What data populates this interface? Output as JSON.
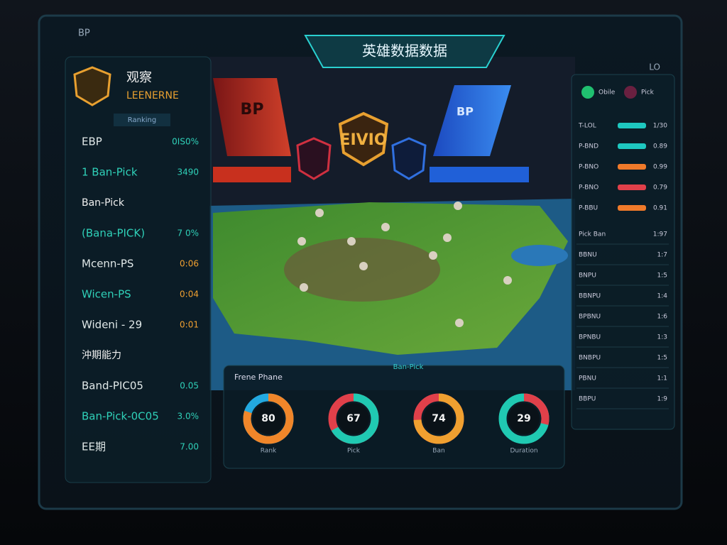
{
  "header": {
    "title": "英雄数据数据",
    "top_left": "BP",
    "top_right": "LO"
  },
  "left_panel": {
    "logo_title": "观察",
    "logo_subtitle": "LEENERNE",
    "tag": "Ranking",
    "rows": [
      {
        "label": "EBP",
        "value": "0IS0%"
      },
      {
        "label": "1 Ban-Pick",
        "value": "3490"
      },
      {
        "label": "Ban-Pick"
      },
      {
        "label": "(Bana-PICK)",
        "value": "7 0%"
      },
      {
        "label": "Mcenn-PS",
        "value": "0:06"
      },
      {
        "label": "Wicen-PS",
        "value": "0:04"
      },
      {
        "label": "Wideni - 29",
        "value": "0:01"
      },
      {
        "label": "沖期能力"
      },
      {
        "label": "Band-PIC05",
        "value": "0.05"
      },
      {
        "label": "Ban-Pick-0C05",
        "value": "3.0%"
      },
      {
        "label": "EE期",
        "value": "7.00"
      }
    ]
  },
  "arena": {
    "left_banner": "BP",
    "center_logo": "EIVIO",
    "right_banner": "BP"
  },
  "donuts": {
    "title": "Frene Phane",
    "subtitle": "Ban-Pick",
    "items": [
      {
        "value": 80,
        "color": "#f0862a",
        "track": "#23a9e0",
        "label": "Rank"
      },
      {
        "value": 67,
        "color": "#20c9b2",
        "track": "#e0404a",
        "label": "Pick"
      },
      {
        "value": 74,
        "color": "#f0a030",
        "track": "#e0404a",
        "label": "Ban"
      },
      {
        "value": 29,
        "color": "#e0404a",
        "track": "#20c9b2",
        "label": "Duration"
      }
    ]
  },
  "right_panel": {
    "top_label": "Obile",
    "top_label_2": "Pick",
    "bars": [
      {
        "label": "T-LOL",
        "value": "1/30",
        "color": "#1ec8c0"
      },
      {
        "label": "P-BND",
        "value": "0.89",
        "color": "#1ec8c0"
      },
      {
        "label": "P-BNO",
        "value": "0.99",
        "color": "#f07a2a"
      },
      {
        "label": "P-BNO",
        "value": "0.79",
        "color": "#e0404a"
      },
      {
        "label": "P-BBU",
        "value": "0.91",
        "color": "#f07a2a"
      }
    ],
    "rows": [
      {
        "label": "Pick Ban",
        "value": "1:97"
      },
      {
        "label": "BBNU",
        "value": "1:7"
      },
      {
        "label": "BNPU",
        "value": "1:5"
      },
      {
        "label": "BBNPU",
        "value": "1:4"
      },
      {
        "label": "BPBNU",
        "value": "1:6"
      },
      {
        "label": "BPNBU",
        "value": "1:3"
      },
      {
        "label": "BNBPU",
        "value": "1:5"
      },
      {
        "label": "PBNU",
        "value": "1:1"
      },
      {
        "label": "BBPU",
        "value": "1:9"
      }
    ]
  }
}
